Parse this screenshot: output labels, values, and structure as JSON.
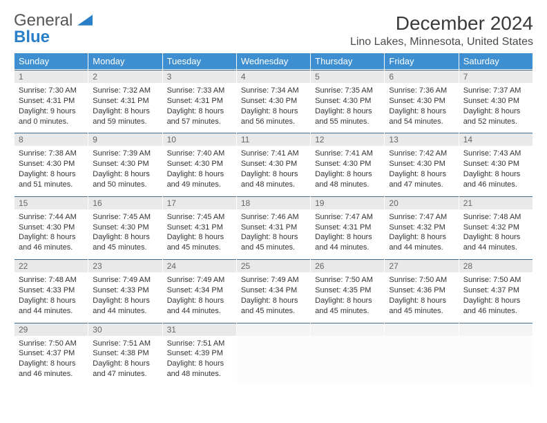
{
  "logo": {
    "line1": "General",
    "line2": "Blue",
    "tri_color": "#2a7fc9"
  },
  "title": "December 2024",
  "location": "Lino Lakes, Minnesota, United States",
  "colors": {
    "header_bg": "#3d8fd1",
    "header_fg": "#ffffff",
    "daynum_bg": "#e9e9e9",
    "daynum_border": "#40688a",
    "text": "#333333"
  },
  "dow": [
    "Sunday",
    "Monday",
    "Tuesday",
    "Wednesday",
    "Thursday",
    "Friday",
    "Saturday"
  ],
  "weeks": [
    [
      {
        "n": "1",
        "sr": "7:30 AM",
        "ss": "4:31 PM",
        "dh": "9",
        "dm": "0"
      },
      {
        "n": "2",
        "sr": "7:32 AM",
        "ss": "4:31 PM",
        "dh": "8",
        "dm": "59"
      },
      {
        "n": "3",
        "sr": "7:33 AM",
        "ss": "4:31 PM",
        "dh": "8",
        "dm": "57"
      },
      {
        "n": "4",
        "sr": "7:34 AM",
        "ss": "4:30 PM",
        "dh": "8",
        "dm": "56"
      },
      {
        "n": "5",
        "sr": "7:35 AM",
        "ss": "4:30 PM",
        "dh": "8",
        "dm": "55"
      },
      {
        "n": "6",
        "sr": "7:36 AM",
        "ss": "4:30 PM",
        "dh": "8",
        "dm": "54"
      },
      {
        "n": "7",
        "sr": "7:37 AM",
        "ss": "4:30 PM",
        "dh": "8",
        "dm": "52"
      }
    ],
    [
      {
        "n": "8",
        "sr": "7:38 AM",
        "ss": "4:30 PM",
        "dh": "8",
        "dm": "51"
      },
      {
        "n": "9",
        "sr": "7:39 AM",
        "ss": "4:30 PM",
        "dh": "8",
        "dm": "50"
      },
      {
        "n": "10",
        "sr": "7:40 AM",
        "ss": "4:30 PM",
        "dh": "8",
        "dm": "49"
      },
      {
        "n": "11",
        "sr": "7:41 AM",
        "ss": "4:30 PM",
        "dh": "8",
        "dm": "48"
      },
      {
        "n": "12",
        "sr": "7:41 AM",
        "ss": "4:30 PM",
        "dh": "8",
        "dm": "48"
      },
      {
        "n": "13",
        "sr": "7:42 AM",
        "ss": "4:30 PM",
        "dh": "8",
        "dm": "47"
      },
      {
        "n": "14",
        "sr": "7:43 AM",
        "ss": "4:30 PM",
        "dh": "8",
        "dm": "46"
      }
    ],
    [
      {
        "n": "15",
        "sr": "7:44 AM",
        "ss": "4:30 PM",
        "dh": "8",
        "dm": "46"
      },
      {
        "n": "16",
        "sr": "7:45 AM",
        "ss": "4:30 PM",
        "dh": "8",
        "dm": "45"
      },
      {
        "n": "17",
        "sr": "7:45 AM",
        "ss": "4:31 PM",
        "dh": "8",
        "dm": "45"
      },
      {
        "n": "18",
        "sr": "7:46 AM",
        "ss": "4:31 PM",
        "dh": "8",
        "dm": "45"
      },
      {
        "n": "19",
        "sr": "7:47 AM",
        "ss": "4:31 PM",
        "dh": "8",
        "dm": "44"
      },
      {
        "n": "20",
        "sr": "7:47 AM",
        "ss": "4:32 PM",
        "dh": "8",
        "dm": "44"
      },
      {
        "n": "21",
        "sr": "7:48 AM",
        "ss": "4:32 PM",
        "dh": "8",
        "dm": "44"
      }
    ],
    [
      {
        "n": "22",
        "sr": "7:48 AM",
        "ss": "4:33 PM",
        "dh": "8",
        "dm": "44"
      },
      {
        "n": "23",
        "sr": "7:49 AM",
        "ss": "4:33 PM",
        "dh": "8",
        "dm": "44"
      },
      {
        "n": "24",
        "sr": "7:49 AM",
        "ss": "4:34 PM",
        "dh": "8",
        "dm": "44"
      },
      {
        "n": "25",
        "sr": "7:49 AM",
        "ss": "4:34 PM",
        "dh": "8",
        "dm": "45"
      },
      {
        "n": "26",
        "sr": "7:50 AM",
        "ss": "4:35 PM",
        "dh": "8",
        "dm": "45"
      },
      {
        "n": "27",
        "sr": "7:50 AM",
        "ss": "4:36 PM",
        "dh": "8",
        "dm": "45"
      },
      {
        "n": "28",
        "sr": "7:50 AM",
        "ss": "4:37 PM",
        "dh": "8",
        "dm": "46"
      }
    ],
    [
      {
        "n": "29",
        "sr": "7:50 AM",
        "ss": "4:37 PM",
        "dh": "8",
        "dm": "46"
      },
      {
        "n": "30",
        "sr": "7:51 AM",
        "ss": "4:38 PM",
        "dh": "8",
        "dm": "47"
      },
      {
        "n": "31",
        "sr": "7:51 AM",
        "ss": "4:39 PM",
        "dh": "8",
        "dm": "48"
      },
      null,
      null,
      null,
      null
    ]
  ],
  "labels": {
    "sunrise": "Sunrise:",
    "sunset": "Sunset:",
    "daylight": "Daylight:"
  }
}
